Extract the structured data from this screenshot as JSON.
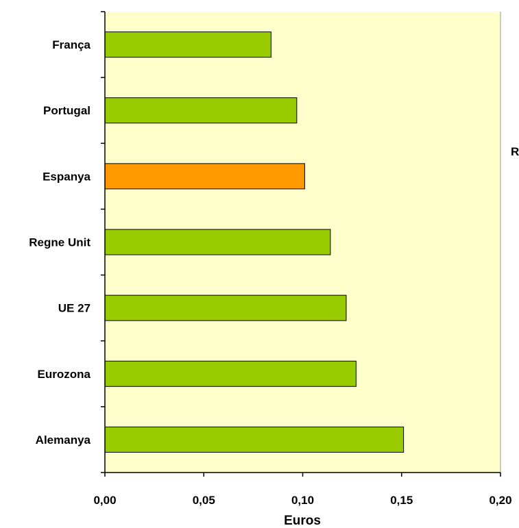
{
  "chart_data": {
    "type": "bar",
    "orientation": "horizontal",
    "categories": [
      "França",
      "Portugal",
      "Espanya",
      "Regne Unit",
      "UE 27",
      "Eurozona",
      "Alemanya"
    ],
    "values": [
      0.084,
      0.097,
      0.101,
      0.114,
      0.122,
      0.127,
      0.151
    ],
    "bar_colors": [
      "#99cc00",
      "#99cc00",
      "#ff9900",
      "#99cc00",
      "#99cc00",
      "#99cc00",
      "#99cc00"
    ],
    "xlabel": "Euros",
    "xlim": [
      0,
      0.2
    ],
    "xticks": [
      0,
      0.05,
      0.1,
      0.15,
      0.2
    ],
    "xtick_labels": [
      "0,00",
      "0,05",
      "0,10",
      "0,15",
      "0,20"
    ],
    "grid": false,
    "plot_background": "#ffffcc",
    "side_text": "R"
  }
}
